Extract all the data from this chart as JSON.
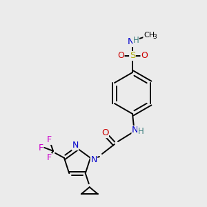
{
  "bg_color": "#ebebeb",
  "atom_colors": {
    "C": "#000000",
    "N": "#0000cc",
    "O": "#cc0000",
    "F": "#cc00cc",
    "S": "#aaaa00",
    "H": "#408080"
  },
  "bond_lw": 1.4,
  "font_size": 8.5
}
